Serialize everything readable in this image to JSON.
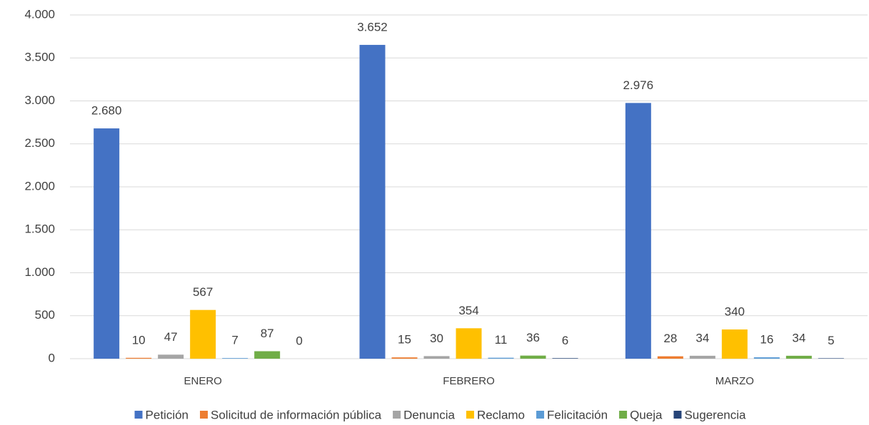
{
  "chart_data": {
    "type": "bar",
    "categories": [
      "ENERO",
      "FEBRERO",
      "MARZO"
    ],
    "series": [
      {
        "name": "Petición",
        "color": "#4472c4",
        "values": [
          2680,
          3652,
          2976
        ],
        "value_labels": [
          "2.680",
          "3.652",
          "2.976"
        ]
      },
      {
        "name": "Solicitud de información pública",
        "color": "#ed7d31",
        "values": [
          10,
          15,
          28
        ]
      },
      {
        "name": "Denuncia",
        "color": "#a5a5a5",
        "values": [
          47,
          30,
          34
        ]
      },
      {
        "name": "Reclamo",
        "color": "#ffc000",
        "values": [
          567,
          354,
          340
        ]
      },
      {
        "name": "Felicitación",
        "color": "#5b9bd5",
        "values": [
          7,
          11,
          16
        ]
      },
      {
        "name": "Queja",
        "color": "#70ad47",
        "values": [
          87,
          36,
          34
        ]
      },
      {
        "name": "Sugerencia",
        "color": "#264478",
        "values": [
          0,
          6,
          5
        ]
      }
    ],
    "ylim": [
      0,
      4000
    ],
    "yticks": [
      0,
      500,
      {
        "value": 1000,
        "label": "1.000"
      },
      {
        "value": 1500,
        "label": "1.500"
      },
      {
        "value": 2000,
        "label": "2.000"
      },
      {
        "value": 2500,
        "label": "2.500"
      },
      {
        "value": 3000,
        "label": "3.000"
      },
      {
        "value": 3500,
        "label": "3.500"
      },
      {
        "value": 4000,
        "label": "4.000"
      }
    ],
    "grid": true,
    "legend": "bottom"
  }
}
